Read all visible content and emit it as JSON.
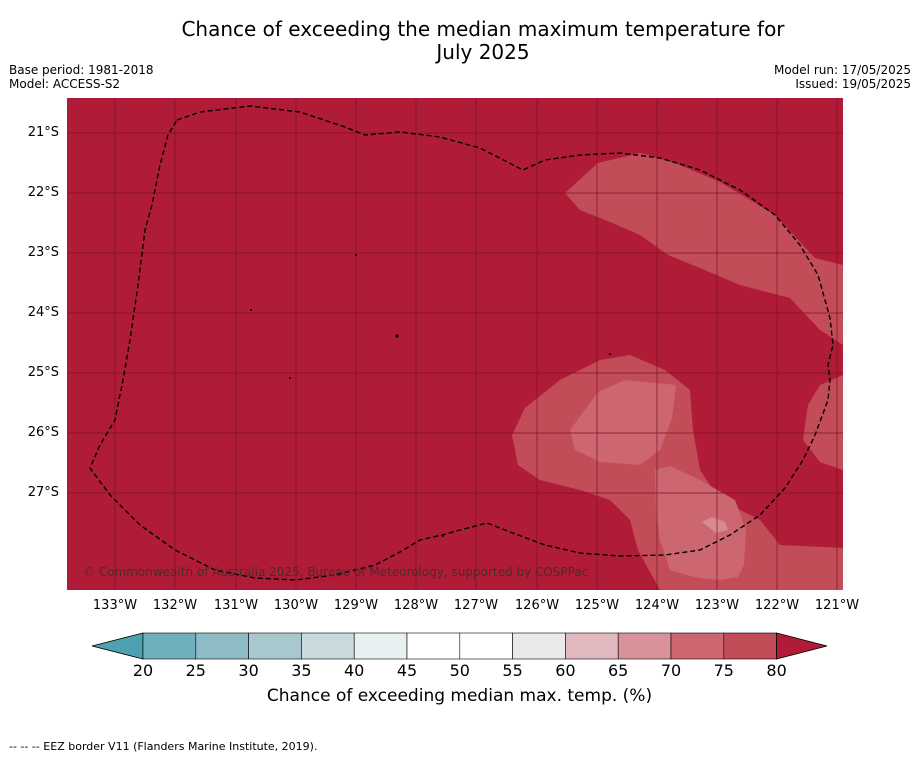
{
  "header": {
    "title_line1": "Chance of exceeding the median maximum temperature for",
    "title_line2": "July 2025",
    "base_period": "Base period: 1981-2018",
    "model": "Model: ACCESS-S2",
    "model_run": "Model run: 17/05/2025",
    "issued": "Issued: 19/05/2025"
  },
  "map": {
    "lat_labels": [
      "21°S",
      "22°S",
      "23°S",
      "24°S",
      "25°S",
      "26°S",
      "27°S"
    ],
    "lon_labels": [
      "133°W",
      "132°W",
      "131°W",
      "130°W",
      "129°W",
      "128°W",
      "127°W",
      "126°W",
      "125°W",
      "124°W",
      "123°W",
      "122°W",
      "121°W"
    ],
    "copyright": "© Commonwealth of Australia 2025, Bureau of Meteorology, supported by COSPPac",
    "colors": {
      "background": "#b01c38",
      "band75": "#c24d59",
      "band70": "#cc6670",
      "band65": "#d88a92",
      "grid": "#7a1325",
      "border": "#000000"
    }
  },
  "colorbar": {
    "labels": [
      "20",
      "25",
      "30",
      "35",
      "40",
      "45",
      "50",
      "55",
      "60",
      "65",
      "70",
      "75",
      "80"
    ],
    "colors": [
      "#6eb0bd",
      "#8ebcc6",
      "#a9c8ce",
      "#c9dadd",
      "#e9f0f2",
      "#ffffff",
      "#ffffff",
      "#e9e9e9",
      "#e2b8bf",
      "#d99299",
      "#cc6670",
      "#c24d59"
    ],
    "under_color": "#4fa0b0",
    "over_color": "#b01c38",
    "title": "Chance of exceeding median max. temp. (%)"
  },
  "footnote": "--  --  -- EEZ border V11 (Flanders Marine Institute, 2019)."
}
